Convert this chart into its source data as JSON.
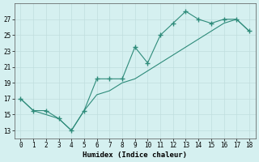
{
  "line1_x": [
    0,
    1,
    2,
    3,
    4,
    5,
    6,
    7,
    8,
    9,
    10,
    11,
    12,
    13,
    14,
    15,
    16,
    17,
    18
  ],
  "line1_y": [
    17,
    15.5,
    15.5,
    14.5,
    13,
    15.5,
    19.5,
    19.5,
    19.5,
    23.5,
    21.5,
    25,
    26.5,
    28,
    27,
    26.5,
    27,
    27,
    25.5
  ],
  "line2_x": [
    0,
    1,
    2,
    3,
    4,
    5,
    6,
    7,
    8,
    9,
    10,
    11,
    12,
    13,
    14,
    15,
    16,
    17,
    18
  ],
  "line2_y": [
    17,
    15.5,
    15.0,
    14.5,
    13,
    15.5,
    17.5,
    18.0,
    19.0,
    19.5,
    20.5,
    21.5,
    22.5,
    23.5,
    24.5,
    25.5,
    26.5,
    27.0,
    25.5
  ],
  "color": "#2e8b7a",
  "xlabel": "Humidex (Indice chaleur)",
  "ylim": [
    12,
    29
  ],
  "xlim": [
    -0.5,
    18.5
  ],
  "yticks": [
    13,
    15,
    17,
    19,
    21,
    23,
    25,
    27
  ],
  "xticks": [
    0,
    1,
    2,
    3,
    4,
    5,
    6,
    7,
    8,
    9,
    10,
    11,
    12,
    13,
    14,
    15,
    16,
    17,
    18
  ],
  "bg_color": "#d5f0f0",
  "grid_color": "#c0dede",
  "marker": "+"
}
